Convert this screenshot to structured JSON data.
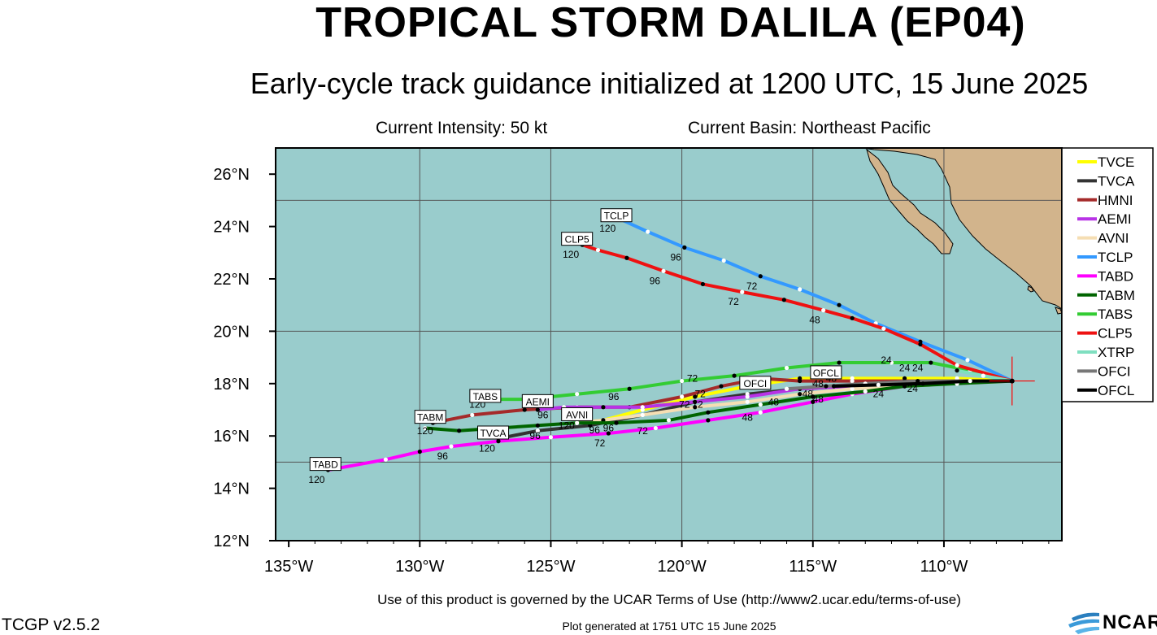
{
  "header": {
    "title": "TROPICAL STORM DALILA (EP04)",
    "subtitle": "Early-cycle track guidance initialized at 1200 UTC, 15 June 2025",
    "intensity": "Current Intensity: 50 kt",
    "basin": "Current Basin: Northeast Pacific"
  },
  "footer": {
    "terms": "Use of this product is governed by the UCAR Terms of Use (http://www2.ucar.edu/terms-of-use)",
    "version": "TCGP v2.5.2",
    "generated": "Plot generated at 1751 UTC   15 June 2025",
    "logo_text": "NCAR"
  },
  "colors": {
    "ocean": "#99cccc",
    "land": "#d2b48c",
    "grid": "#555555"
  },
  "chart_data": {
    "type": "line",
    "xlim": [
      -135.5,
      -105.5
    ],
    "ylim": [
      12,
      27
    ],
    "x_ticks": [
      {
        "value": -135,
        "label": "135°W"
      },
      {
        "value": -130,
        "label": "130°W"
      },
      {
        "value": -125,
        "label": "125°W"
      },
      {
        "value": -120,
        "label": "120°W"
      },
      {
        "value": -115,
        "label": "115°W"
      },
      {
        "value": -110,
        "label": "110°W"
      }
    ],
    "y_ticks": [
      {
        "value": 12,
        "label": "12°N"
      },
      {
        "value": 14,
        "label": "14°N"
      },
      {
        "value": 16,
        "label": "16°N"
      },
      {
        "value": 18,
        "label": "18°N"
      },
      {
        "value": 20,
        "label": "20°N"
      },
      {
        "value": 22,
        "label": "22°N"
      },
      {
        "value": 24,
        "label": "24°N"
      },
      {
        "value": 26,
        "label": "26°N"
      }
    ],
    "grid_lons": [
      -130,
      -125,
      -120,
      -115,
      -110
    ],
    "grid_lats": [
      15,
      20,
      25
    ],
    "grid": true,
    "legend_position": "right",
    "initial_position": {
      "lon": -107.4,
      "lat": 18.1
    },
    "series": [
      {
        "name": "TVCE",
        "color": "#ffff00",
        "lon": [
          -107.4,
          -109.5,
          -111.5,
          -113.5,
          -115.5,
          -117.5,
          -119.5,
          -121.5,
          -123.0,
          -124.0
        ],
        "lat": [
          18.1,
          18.2,
          18.2,
          18.2,
          18.2,
          17.9,
          17.5,
          17.0,
          16.6,
          16.5
        ],
        "labels": [
          {
            "i": 8,
            "text": "96"
          }
        ]
      },
      {
        "name": "TVCA",
        "color": "#333333",
        "lon": [
          -107.4,
          -109.5,
          -111.5,
          -113.5,
          -115.5,
          -117.5,
          -119.5,
          -121.5,
          -123.5,
          -125.5,
          -127.0
        ],
        "lat": [
          18.1,
          18.1,
          18.0,
          17.9,
          17.8,
          17.6,
          17.3,
          16.8,
          16.4,
          16.2,
          15.9
        ],
        "labels": [
          {
            "i": 10,
            "text": "120"
          }
        ]
      },
      {
        "name": "HMNI",
        "color": "#a52a2a",
        "lon": [
          -107.4,
          -109.5,
          -111.5,
          -113.5,
          -115.5,
          -117.0,
          -118.5,
          -120.0,
          -122.0,
          -124.0,
          -126.0,
          -128.0,
          -129.5
        ],
        "lat": [
          18.1,
          18.1,
          18.1,
          18.1,
          18.1,
          18.2,
          17.9,
          17.5,
          17.1,
          17.1,
          17.0,
          16.8,
          16.5
        ],
        "labels": []
      },
      {
        "name": "AEMI",
        "color": "#b833e6",
        "lon": [
          -107.4,
          -109.5,
          -111.5,
          -113.5,
          -115.5,
          -117.5,
          -119.5,
          -121.5,
          -123.0,
          -124.5,
          -125.5
        ],
        "lat": [
          18.1,
          18.0,
          18.0,
          17.9,
          17.8,
          17.5,
          17.3,
          17.1,
          17.1,
          17.1,
          17.0
        ],
        "labels": []
      },
      {
        "name": "AVNI",
        "color": "#f5deb3",
        "lon": [
          -107.4,
          -109.5,
          -111.5,
          -113.5,
          -115.5,
          -117.5,
          -119.5,
          -121.5,
          -123.0,
          -124.0
        ],
        "lat": [
          18.1,
          18.0,
          17.9,
          17.8,
          17.6,
          17.3,
          17.1,
          16.8,
          16.6,
          16.5
        ],
        "labels": []
      },
      {
        "name": "TCLP",
        "color": "#3399ff",
        "lon": [
          -107.4,
          -109.1,
          -110.9,
          -112.6,
          -114.0,
          -115.5,
          -117.0,
          -118.4,
          -119.9,
          -121.3,
          -122.4
        ],
        "lat": [
          18.1,
          18.9,
          19.6,
          20.3,
          21.0,
          21.6,
          22.1,
          22.7,
          23.2,
          23.8,
          24.3
        ],
        "labels": [
          {
            "i": 6,
            "text": "72"
          },
          {
            "i": 8,
            "text": "96"
          },
          {
            "i": 10,
            "text": "120"
          }
        ]
      },
      {
        "name": "TABD",
        "color": "#ff00ff",
        "lon": [
          -107.4,
          -109.5,
          -111.5,
          -113.5,
          -115.0,
          -117.0,
          -119.0,
          -121.0,
          -122.8,
          -125.0,
          -127.0,
          -128.8,
          -130.0,
          -131.3,
          -133.5
        ],
        "lat": [
          18.1,
          18.1,
          17.9,
          17.6,
          17.3,
          16.9,
          16.6,
          16.3,
          16.1,
          15.95,
          15.8,
          15.6,
          15.4,
          15.1,
          14.7
        ],
        "labels": [
          {
            "i": 8,
            "text": "72"
          },
          {
            "i": 11,
            "text": "96"
          },
          {
            "i": 14,
            "text": "120"
          }
        ]
      },
      {
        "name": "TABM",
        "color": "#006400",
        "lon": [
          -107.4,
          -109.5,
          -111.5,
          -113.0,
          -115.0,
          -117.0,
          -119.0,
          -120.5,
          -122.5,
          -124.0,
          -125.5,
          -127.0,
          -128.5,
          -129.8
        ],
        "lat": [
          18.1,
          18.0,
          17.9,
          17.7,
          17.5,
          17.2,
          16.9,
          16.6,
          16.5,
          16.5,
          16.4,
          16.3,
          16.2,
          16.3
        ],
        "labels": []
      },
      {
        "name": "TABS",
        "color": "#33cc33",
        "lon": [
          -107.4,
          -109.0,
          -110.5,
          -112.0,
          -114.0,
          -116.0,
          -118.0,
          -120.0,
          -122.0,
          -124.0,
          -126.0,
          -127.3
        ],
        "lat": [
          18.1,
          18.5,
          18.8,
          18.8,
          18.8,
          18.6,
          18.3,
          18.1,
          17.8,
          17.6,
          17.4,
          17.4
        ],
        "labels": []
      },
      {
        "name": "CLP5",
        "color": "#ee1111",
        "lon": [
          -107.4,
          -109.5,
          -110.9,
          -112.3,
          -113.5,
          -114.6,
          -116.1,
          -117.7,
          -119.2,
          -120.7,
          -122.1,
          -123.2,
          -123.8
        ],
        "lat": [
          18.1,
          18.7,
          19.5,
          20.1,
          20.5,
          20.8,
          21.2,
          21.5,
          21.8,
          22.3,
          22.8,
          23.1,
          23.3
        ],
        "labels": [
          {
            "i": 5,
            "text": "48"
          },
          {
            "i": 7,
            "text": "72"
          },
          {
            "i": 9,
            "text": "96"
          },
          {
            "i": 12,
            "text": "120"
          }
        ]
      },
      {
        "name": "XTRP",
        "color": "#7fdfc0",
        "lon": [
          -107.4,
          -108.5,
          -109.5
        ],
        "lat": [
          18.1,
          18.3,
          18.5
        ],
        "labels": []
      },
      {
        "name": "OFCI",
        "color": "#777777",
        "lon": [
          -107.4,
          -109.0,
          -111.0,
          -113.0,
          -114.5,
          -116.0
        ],
        "lat": [
          18.1,
          18.1,
          18.1,
          18.0,
          17.9,
          17.8
        ],
        "labels": []
      },
      {
        "name": "OFCL",
        "color": "#000000",
        "lon": [
          -107.4,
          -109.0,
          -110.8,
          -112.5,
          -114.2
        ],
        "lat": [
          18.1,
          18.1,
          18.0,
          17.95,
          17.9
        ],
        "labels": []
      }
    ],
    "end_labels": [
      {
        "text": "TCLP",
        "lon": -122.5,
        "lat": 24.4
      },
      {
        "text": "CLP5",
        "lon": -124.0,
        "lat": 23.5
      },
      {
        "text": "TABS",
        "lon": -127.5,
        "lat": 17.5
      },
      {
        "text": "AEMI",
        "lon": -125.5,
        "lat": 17.3
      },
      {
        "text": "TABM",
        "lon": -129.6,
        "lat": 16.7
      },
      {
        "text": "AVNI",
        "lon": -124.0,
        "lat": 16.8
      },
      {
        "text": "TVCA",
        "lon": -127.2,
        "lat": 16.1
      },
      {
        "text": "TABD",
        "lon": -133.6,
        "lat": 14.9
      },
      {
        "text": "OFCI",
        "lon": -117.2,
        "lat": 18.0
      },
      {
        "text": "OFCL",
        "lon": -114.5,
        "lat": 18.4
      }
    ],
    "hour_labels": [
      {
        "text": "24",
        "lon": -111.5,
        "lat": 18.6
      },
      {
        "text": "24",
        "lon": -112.2,
        "lat": 18.9
      },
      {
        "text": "24",
        "lon": -111.0,
        "lat": 18.6
      },
      {
        "text": "24",
        "lon": -112.5,
        "lat": 17.6
      },
      {
        "text": "24",
        "lon": -111.2,
        "lat": 17.8
      },
      {
        "text": "48",
        "lon": -114.8,
        "lat": 18.0
      },
      {
        "text": "48",
        "lon": -115.2,
        "lat": 17.6
      },
      {
        "text": "48",
        "lon": -114.8,
        "lat": 17.4
      },
      {
        "text": "48",
        "lon": -116.5,
        "lat": 17.3
      },
      {
        "text": "48",
        "lon": -117.5,
        "lat": 16.7
      },
      {
        "text": "48",
        "lon": -114.3,
        "lat": 18.2
      },
      {
        "text": "72",
        "lon": -119.3,
        "lat": 17.6
      },
      {
        "text": "72",
        "lon": -119.9,
        "lat": 17.2
      },
      {
        "text": "72",
        "lon": -119.4,
        "lat": 17.2
      },
      {
        "text": "72",
        "lon": -119.6,
        "lat": 18.2
      },
      {
        "text": "72",
        "lon": -121.5,
        "lat": 16.2
      },
      {
        "text": "96",
        "lon": -122.6,
        "lat": 17.5
      },
      {
        "text": "96",
        "lon": -125.3,
        "lat": 16.8
      },
      {
        "text": "96",
        "lon": -122.8,
        "lat": 16.3
      },
      {
        "text": "96",
        "lon": -125.6,
        "lat": 16.0
      },
      {
        "text": "96",
        "lon": -124.2,
        "lat": 16.8
      },
      {
        "text": "120",
        "lon": -129.8,
        "lat": 16.2
      },
      {
        "text": "120",
        "lon": -124.4,
        "lat": 16.4
      },
      {
        "text": "120",
        "lon": -127.8,
        "lat": 17.2
      }
    ]
  }
}
